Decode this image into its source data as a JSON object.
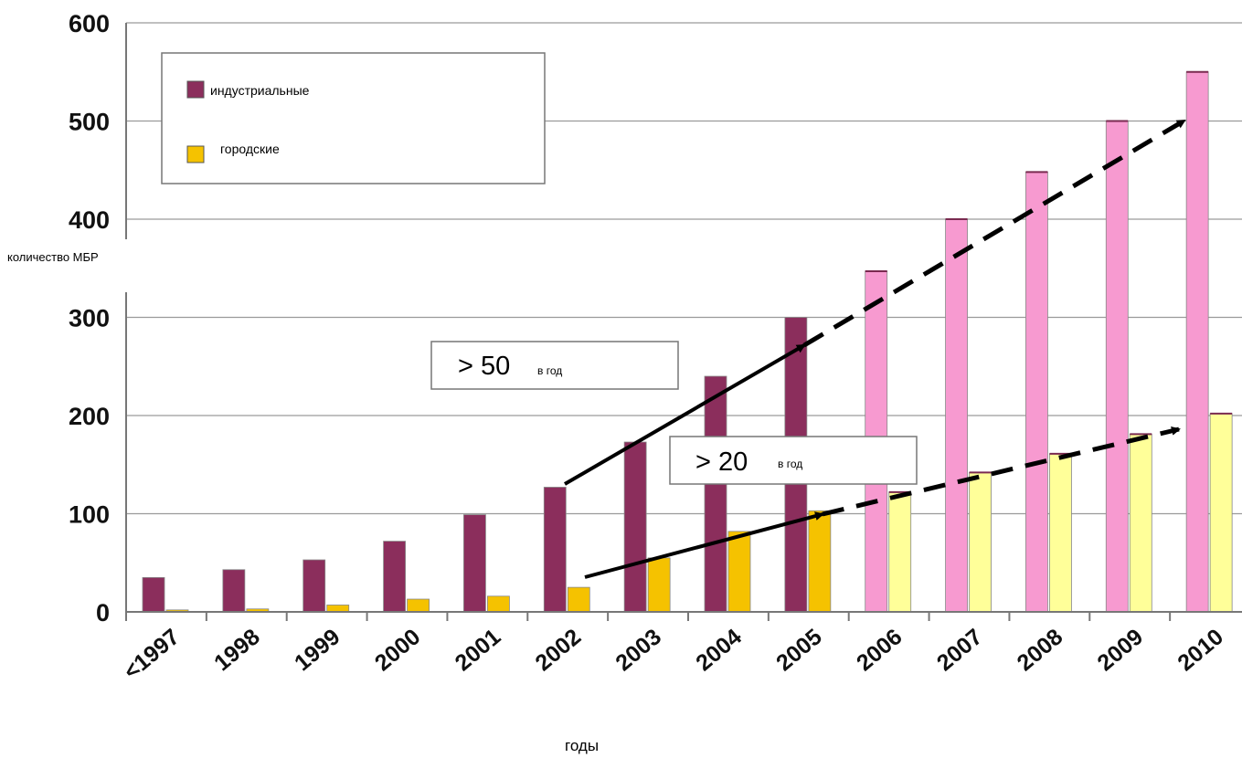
{
  "chart_data": {
    "type": "bar",
    "xlabel": "годы",
    "ylabel": "количество  МБР",
    "ylim": [
      0,
      600
    ],
    "yticks": [
      0,
      100,
      200,
      300,
      400,
      500,
      600
    ],
    "grid": true,
    "legend_position": "top-left",
    "categories": [
      "<1997",
      "1998",
      "1999",
      "2000",
      "2001",
      "2002",
      "2003",
      "2004",
      "2005",
      "2006",
      "2007",
      "2008",
      "2009",
      "2010"
    ],
    "series": [
      {
        "name": "индустриальные",
        "color": "#8b2e5c",
        "projected_color": "#f79ad0",
        "values": [
          35,
          43,
          53,
          72,
          99,
          127,
          173,
          240,
          300,
          347,
          400,
          448,
          500,
          550
        ]
      },
      {
        "name": "городские",
        "color": "#f5c200",
        "projected_color": "#ffff99",
        "values": [
          2,
          3,
          7,
          13,
          16,
          25,
          55,
          82,
          103,
          122,
          142,
          161,
          181,
          202
        ]
      }
    ],
    "projected_from_index": 9,
    "annotations": [
      {
        "value": "> 50",
        "suffix": "в год"
      },
      {
        "value": "> 20",
        "suffix": "в год"
      }
    ]
  },
  "colors": {
    "grid": "#9a9a9a",
    "axis": "#777777",
    "arrow": "#000000"
  }
}
